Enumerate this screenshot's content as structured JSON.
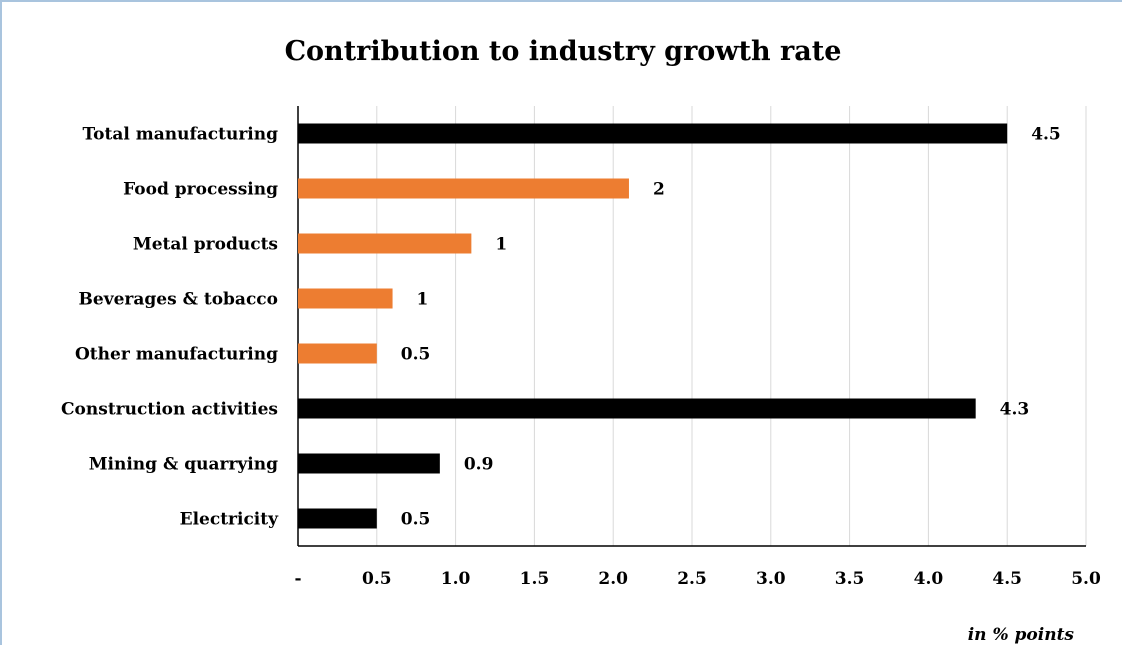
{
  "chart_data": {
    "type": "bar",
    "orientation": "horizontal",
    "title": "Contribution to industry growth rate",
    "xlabel": "in % points",
    "categories": [
      "Total manufacturing",
      "Food processing",
      "Metal products",
      "Beverages & tobacco",
      "Other manufacturing",
      "Construction activities",
      "Mining & quarrying",
      "Electricity"
    ],
    "values": [
      4.5,
      2.1,
      1.1,
      0.6,
      0.5,
      4.3,
      0.9,
      0.5
    ],
    "data_labels": [
      "4.5",
      "2",
      "1",
      "1",
      "0.5",
      "4.3",
      "0.9",
      "0.5"
    ],
    "bar_colors": [
      "#000000",
      "#ed7d31",
      "#ed7d31",
      "#ed7d31",
      "#ed7d31",
      "#000000",
      "#000000",
      "#000000"
    ],
    "xlim": [
      0,
      5
    ],
    "x_ticks": [
      "-",
      "0.5",
      "1.0",
      "1.5",
      "2.0",
      "2.5",
      "3.0",
      "3.5",
      "4.0",
      "4.5",
      "5.0"
    ],
    "grid": "vertical",
    "legend": "none"
  }
}
